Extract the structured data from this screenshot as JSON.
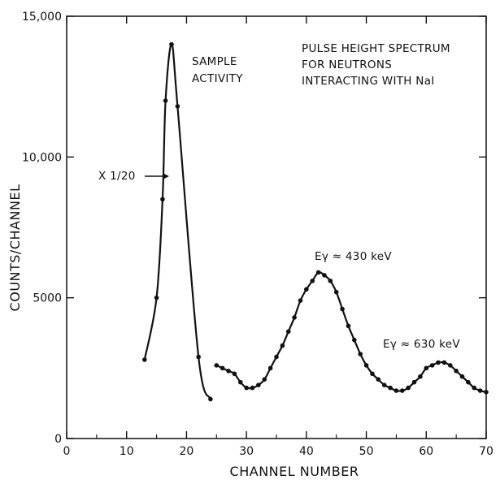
{
  "chart_data": {
    "type": "line",
    "title": "",
    "xlabel": "CHANNEL NUMBER",
    "ylabel": "COUNTS/CHANNEL",
    "xlim": [
      0,
      70
    ],
    "ylim": [
      0,
      15000
    ],
    "grid": false,
    "x_ticks": [
      "0",
      "10",
      "20",
      "30",
      "40",
      "50",
      "60",
      "70"
    ],
    "y_ticks": [
      "0",
      "5000",
      "10,000",
      "15,000"
    ],
    "series": [
      {
        "name": "",
        "note": "X 1/20",
        "points": [
          [
            13,
            2800
          ],
          [
            15,
            5000
          ],
          [
            16,
            8500
          ],
          [
            16.5,
            12000
          ],
          [
            17.5,
            14000
          ],
          [
            18.5,
            11800
          ],
          [
            22,
            2900
          ],
          [
            24,
            1400
          ]
        ]
      },
      {
        "name": "",
        "points": [
          [
            25,
            2600
          ],
          [
            26,
            2500
          ],
          [
            27,
            2400
          ],
          [
            28,
            2300
          ],
          [
            29,
            2000
          ],
          [
            30,
            1800
          ],
          [
            31,
            1800
          ],
          [
            32,
            1900
          ],
          [
            33,
            2100
          ],
          [
            34,
            2500
          ],
          [
            35,
            2900
          ],
          [
            36,
            3300
          ],
          [
            37,
            3800
          ],
          [
            38,
            4300
          ],
          [
            39,
            4900
          ],
          [
            40,
            5300
          ],
          [
            41,
            5600
          ],
          [
            42,
            5900
          ],
          [
            43,
            5800
          ],
          [
            44,
            5600
          ],
          [
            45,
            5200
          ],
          [
            46,
            4600
          ],
          [
            47,
            4000
          ],
          [
            48,
            3500
          ],
          [
            49,
            3000
          ],
          [
            50,
            2600
          ],
          [
            51,
            2300
          ],
          [
            52,
            2100
          ],
          [
            53,
            1900
          ],
          [
            54,
            1800
          ],
          [
            55,
            1700
          ],
          [
            56,
            1700
          ],
          [
            57,
            1800
          ],
          [
            58,
            2000
          ],
          [
            59,
            2200
          ],
          [
            60,
            2500
          ],
          [
            61,
            2600
          ],
          [
            62,
            2700
          ],
          [
            63,
            2700
          ],
          [
            64,
            2600
          ],
          [
            65,
            2400
          ],
          [
            66,
            2200
          ],
          [
            67,
            2000
          ],
          [
            68,
            1800
          ],
          [
            69,
            1700
          ],
          [
            70,
            1650
          ]
        ]
      }
    ],
    "annotations": [
      {
        "id": "title1",
        "text": "PULSE HEIGHT SPECTRUM"
      },
      {
        "id": "title2",
        "text": "FOR NEUTRONS"
      },
      {
        "id": "title3",
        "text": "INTERACTING WITH NaI"
      },
      {
        "id": "sample1",
        "text": "SAMPLE"
      },
      {
        "id": "sample2",
        "text": "ACTIVITY"
      },
      {
        "id": "scale",
        "text": "X 1/20"
      },
      {
        "id": "peak430",
        "text": "Eγ ≈ 430 keV"
      },
      {
        "id": "peak630",
        "text": "Eγ ≈ 630 keV"
      }
    ]
  }
}
